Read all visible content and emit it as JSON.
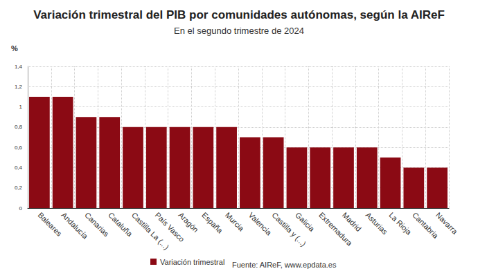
{
  "chart_data": {
    "type": "bar",
    "title": "Variación trimestral del PIB por comunidades autónomas, según la AIReF",
    "subtitle": "En el segundo trimestre de 2024",
    "y_label": "%",
    "source": "Fuente: AIReF, www.epdata.es",
    "categories": [
      "Baleares",
      "Andalucía",
      "Canarias",
      "Cataluña",
      "Castilla La (...)",
      "País Vasco",
      "Aragón",
      "España",
      "Murcia",
      "Valencia",
      "Castilla y (...)",
      "Galicia",
      "Extremadura",
      "Madrid",
      "Asturias",
      "La Rioja",
      "Cantabria",
      "Navarra"
    ],
    "series": [
      {
        "name": "Variación trimestral",
        "color": "#8b0a14",
        "values": [
          1.1,
          1.1,
          0.9,
          0.9,
          0.8,
          0.8,
          0.8,
          0.8,
          0.8,
          0.7,
          0.7,
          0.6,
          0.6,
          0.6,
          0.6,
          0.5,
          0.4,
          0.4
        ]
      }
    ],
    "ylim": [
      0,
      1.4
    ],
    "yticks": [
      0,
      {
        "value": 0.2,
        "label": "0,2"
      },
      {
        "value": 0.4,
        "label": "0,4"
      },
      {
        "value": 0.6,
        "label": "0,6"
      },
      {
        "value": 0.8,
        "label": "0,8"
      },
      1,
      {
        "value": 1.2,
        "label": "1,2"
      },
      {
        "value": 1.4,
        "label": "1,4"
      }
    ],
    "grid": true,
    "legend": "bottom"
  }
}
